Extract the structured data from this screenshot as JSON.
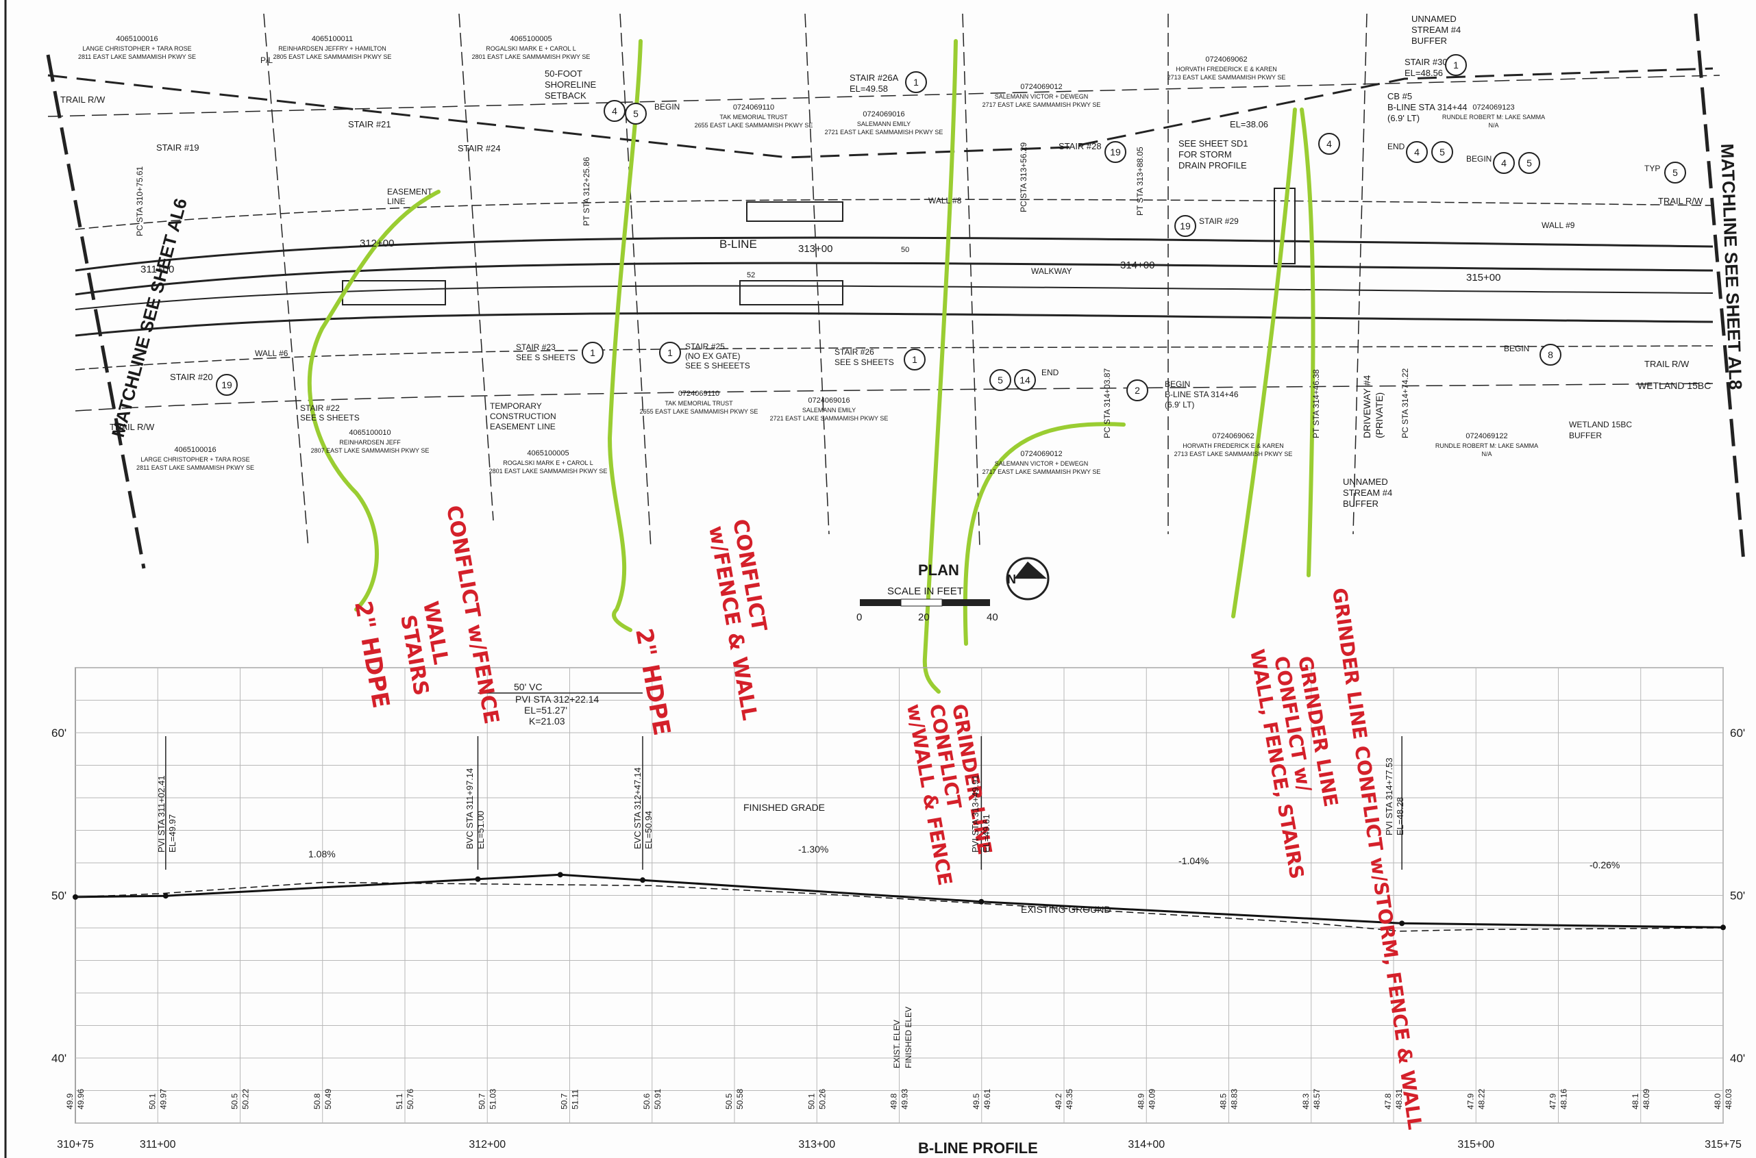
{
  "colors": {
    "ink": "#1a1a1a",
    "markup_red": "#d4202a",
    "markup_green": "#9acd32",
    "grid": "#b0b0b0"
  },
  "plan": {
    "title": "PLAN",
    "scale_label": "SCALE IN FEET",
    "scale_ticks": [
      "0",
      "20",
      "40"
    ],
    "north_icon": "north-arrow-icon",
    "matchline_left": "MATCHLINE SEE SHEET AL6",
    "matchline_right": "MATCHLINE SEE SHEET AL8",
    "alignment_label": "B-LINE",
    "walkway_label": "WALKWAY",
    "stations": [
      "311+00",
      "312+00",
      "313+00",
      "314+00",
      "315+00"
    ],
    "trail_rw": "TRAIL R/W",
    "pl": "P/L",
    "parcels_top": [
      {
        "id": "4065100016",
        "owner": "LANGE CHRISTOPHER + TARA ROSE",
        "addr": "2811 EAST LAKE SAMMAMISH PKWY SE"
      },
      {
        "id": "4065100011",
        "owner": "REINHARDSEN JEFFRY + HAMILTON",
        "addr": "2805 EAST LAKE SAMMAMISH PKWY SE"
      },
      {
        "id": "4065100005",
        "owner": "ROGALSKI MARK E + CAROL L",
        "addr": "2801 EAST LAKE SAMMAMISH PKWY SE"
      },
      {
        "id": "0724069110",
        "owner": "TAK MEMORIAL TRUST",
        "addr": "2655 EAST LAKE SAMMAMISH PKWY SE"
      },
      {
        "id": "0724069016",
        "owner": "SALEMANN EMILY",
        "addr": "2721 EAST LAKE SAMMAMISH PKWY SE"
      },
      {
        "id": "0724069012",
        "owner": "SALEMANN VICTOR + DEWEGN",
        "addr": "2717 EAST LAKE SAMMAMISH PKWY SE"
      },
      {
        "id": "0724069062",
        "owner": "HORVATH FREDERICK E & KAREN",
        "addr": "2713 EAST LAKE SAMMAMISH PKWY SE"
      },
      {
        "id": "0724069123",
        "owner": "RUNDLE ROBERT M: LAKE SAMMA",
        "addr": "N/A"
      }
    ],
    "parcels_bottom": [
      {
        "id": "4065100016",
        "owner": "LARGE CHRISTOPHER + TARA ROSE",
        "addr": "2811 EAST LAKE SAMMAMISH PKWY SE"
      },
      {
        "id": "4065100010",
        "owner": "REINHARDSEN JEFF",
        "addr": "2807 EAST LAKE SAMMAMISH PKWY SE"
      },
      {
        "id": "4065100005",
        "owner": "ROGALSKI MARK E + CAROL L",
        "addr": "2801 EAST LAKE SAMMAMISH PKWY SE"
      },
      {
        "id": "0724069110",
        "owner": "TAK MEMORIAL TRUST",
        "addr": "2655 EAST LAKE SAMMAMISH PKWY SE"
      },
      {
        "id": "0724069016",
        "owner": "SALEMANN EMILY",
        "addr": "2721 EAST LAKE SAMMAMISH PKWY SE"
      },
      {
        "id": "0724069012",
        "owner": "SALEMANN VICTOR + DEWEGN",
        "addr": "2717 EAST LAKE SAMMAMISH PKWY SE"
      },
      {
        "id": "0724069062",
        "owner": "HORVATH FREDERICK E & KAREN",
        "addr": "2713 EAST LAKE SAMMAMISH PKWY SE"
      },
      {
        "id": "0724069122",
        "owner": "RUNDLE ROBERT M: LAKE SAMMA",
        "addr": "N/A"
      }
    ],
    "callouts": {
      "stair19": "STAIR #19",
      "stair20": "STAIR #20",
      "stair21": "STAIR #21",
      "stair22": "STAIR #22",
      "stair22_sub": "SEE S SHEETS",
      "stair23": "STAIR #23",
      "stair23_sub": "SEE S SHEETS",
      "stair24": "STAIR #24",
      "stair25": "STAIR #25",
      "stair25_sub": "(NO EX GATE)",
      "stair25_sub2": "SEE S SHEEETS",
      "stair26": "STAIR #26",
      "stair26_sub": "SEE S SHEETS",
      "stair26a": "STAIR #26A",
      "stair26a_el": "EL=49.58",
      "stair28": "STAIR #28",
      "stair29": "STAIR #29",
      "stair30": "STAIR #30",
      "stair30_el": "EL=48.56",
      "easement": "EASEMENT",
      "easement2": "LINE",
      "shoreline1": "50-FOOT",
      "shoreline2": "SHORELINE",
      "shoreline3": "SETBACK",
      "tce1": "TEMPORARY",
      "tce2": "CONSTRUCTION",
      "tce3": "EASEMENT LINE",
      "wall6": "WALL #6",
      "wall8": "WALL #8",
      "wall9": "WALL #9",
      "begin": "BEGIN",
      "end": "END",
      "typ": "TYP",
      "sd1": "SEE SHEET SD1",
      "sd2": "FOR STORM",
      "sd3": "DRAIN PROFILE",
      "el3806": "EL=38.06",
      "cb1": "CB #5",
      "cb2": "B-LINE STA 314+44",
      "cb3": "(6.9' LT)",
      "bl1": "B-LINE STA 314+46",
      "bl2": "(6.9' LT)",
      "stream1": "UNNAMED",
      "stream2": "STREAM #4",
      "stream3": "BUFFER",
      "driveway1": "DRIVEWAY #4",
      "driveway2": "(PRIVATE)",
      "wetland": "WETLAND 15BC",
      "wetland_buf1": "WETLAND 15BC",
      "wetland_buf2": "BUFFER",
      "pc_sta_a": "PC STA 310+75.61",
      "pt_sta_a": "PT STA 312+25.86",
      "pc_sta_b": "PC STA 313+56.29",
      "pt_sta_b": "PT STA 313+88.05",
      "pc_sta_c": "PC STA 314+03.87",
      "pt_sta_c": "PT STA 314+46.38",
      "pc_sta_d": "PC STA 314+74.22",
      "num1": "1",
      "num2": "2",
      "num4": "4",
      "num5": "5",
      "num8": "8",
      "num14": "14",
      "num19": "19",
      "val52": "52",
      "val50": "50"
    }
  },
  "markups": {
    "m1": [
      "CONFLICT w/FENCE",
      "WALL",
      "STAIRS"
    ],
    "m2": "2\" HDPE",
    "m3": [
      "CONFLICT",
      "w/FENCE & WALL"
    ],
    "m4": "2\" HDPE",
    "m5": [
      "GRINDER LINE",
      "CONFLICT",
      "w/WALL & FENCE"
    ],
    "m6": [
      "GRINDER LINE",
      "CONFLICT w/",
      "WALL, FENCE, STAIRS"
    ],
    "m7": "GRINDER LINE CONFLICT w/STORM, FENCE & WALL"
  },
  "profile": {
    "title": "B-LINE PROFILE",
    "y_ticks": [
      {
        "label": "60'",
        "v": 60
      },
      {
        "label": "50'",
        "v": 50
      },
      {
        "label": "40'",
        "v": 40
      }
    ],
    "station_labels": [
      "310+75",
      "311+00",
      "312+00",
      "313+00",
      "314+00",
      "315+00",
      "315+75"
    ],
    "finished_grade_label": "FINISHED GRADE",
    "existing_ground_label": "EXISTING GROUND",
    "vc_label": "50' VC",
    "pvi_main": [
      "PVI STA 312+22.14",
      "EL=51.27'",
      "K=21.03"
    ],
    "pvi1": [
      "PVI STA 311+02.41",
      "EL=49.97"
    ],
    "bvc": [
      "BVC STA 311+97.14",
      "EL=51.00"
    ],
    "evc": [
      "EVC STA 312+47.14",
      "EL=50.94"
    ],
    "pvi3": [
      "PVI STA 313+49.91",
      "EL=49.61"
    ],
    "pvi4": [
      "PVI STA 314+77.53",
      "EL=48.28"
    ],
    "grades": [
      "1.08%",
      "-1.30%",
      "-1.04%",
      "-0.26%"
    ],
    "elev_legend": [
      "EXIST. ELEV",
      "FINISHED ELEV"
    ],
    "bottom_pairs": [
      [
        "49.9",
        "49.96"
      ],
      [
        "50.1",
        "49.97"
      ],
      [
        "50.5",
        "50.22"
      ],
      [
        "50.8",
        "50.49"
      ],
      [
        "51.1",
        "50.76"
      ],
      [
        "50.7",
        "51.03"
      ],
      [
        "50.7",
        "51.11"
      ],
      [
        "50.6",
        "50.91"
      ],
      [
        "50.5",
        "50.58"
      ],
      [
        "50.1",
        "50.26"
      ],
      [
        "49.8",
        "49.93"
      ],
      [
        "49.5",
        "49.61"
      ],
      [
        "49.2",
        "49.35"
      ],
      [
        "48.9",
        "49.09"
      ],
      [
        "48.5",
        "48.83"
      ],
      [
        "48.3",
        "48.57"
      ],
      [
        "47.8",
        "48.31"
      ],
      [
        "47.9",
        "48.22"
      ],
      [
        "47.9",
        "48.16"
      ],
      [
        "48.1",
        "48.09"
      ],
      [
        "48.0",
        "48.03"
      ]
    ]
  },
  "chart_data": {
    "type": "line",
    "title": "B-LINE PROFILE",
    "xlabel": "",
    "ylabel": "",
    "ylim": [
      36,
      64
    ],
    "series": [
      {
        "name": "FINISHED GRADE",
        "x": [
          310.75,
          311.0241,
          311.9714,
          312.2214,
          312.4714,
          313.4991,
          314.7753,
          315.75
        ],
        "y": [
          49.9,
          49.97,
          51.0,
          51.27,
          50.94,
          49.61,
          48.28,
          48.03
        ]
      },
      {
        "name": "EXISTING GROUND",
        "x": [
          310.75,
          311.0,
          311.5,
          312.0,
          312.5,
          313.0,
          313.5,
          314.0,
          314.5,
          314.77,
          315.0,
          315.75
        ],
        "y": [
          49.9,
          50.1,
          50.8,
          50.7,
          50.6,
          50.1,
          49.5,
          48.9,
          48.3,
          47.8,
          47.9,
          48.0
        ]
      }
    ]
  }
}
